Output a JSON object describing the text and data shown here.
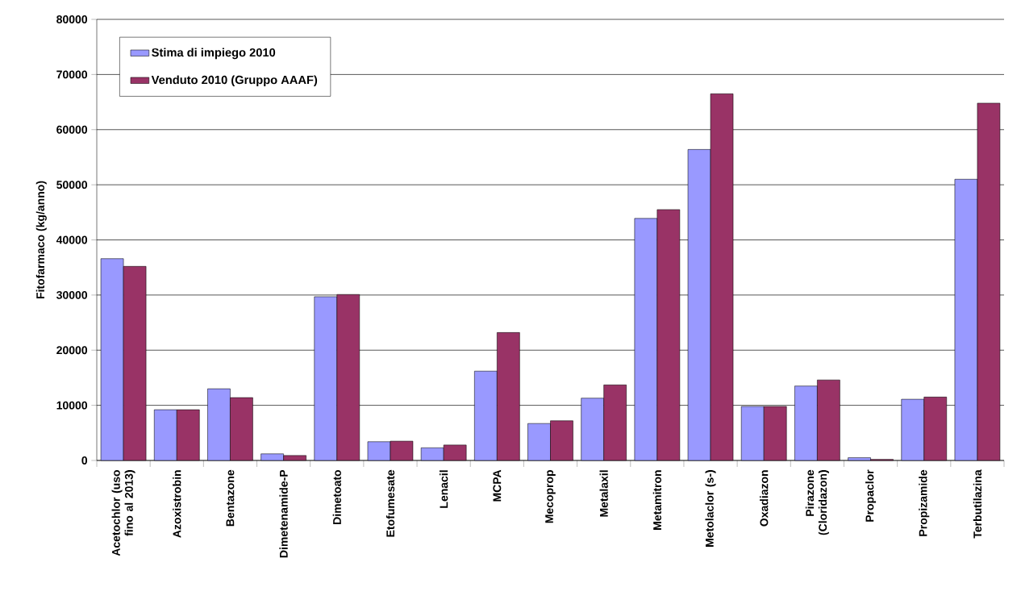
{
  "chart_data": {
    "type": "bar",
    "ylabel": "Fitofarmaco (kg/anno)",
    "categories": [
      "Acetochlor (uso fino al 2013)",
      "Azoxistrobin",
      "Bentazone",
      "Dimetenamide-P",
      "Dimetoato",
      "Etofumesate",
      "Lenacil",
      "MCPA",
      "Mecoprop",
      "Metalaxil",
      "Metamitron",
      "Metolaclor (s-)",
      "Oxadiazon",
      "Pirazone (Cloridazon)",
      "Propaclor",
      "Propizamide",
      "Terbutilazina"
    ],
    "series": [
      {
        "name": "Stima di impiego 2010",
        "color": "#9999ff",
        "values": [
          36600,
          9200,
          13000,
          1200,
          29700,
          3400,
          2300,
          16200,
          6700,
          11300,
          43900,
          56400,
          9800,
          13500,
          500,
          11100,
          51000
        ]
      },
      {
        "name": "Venduto 2010 (Gruppo AAAF)",
        "color": "#993366",
        "values": [
          35200,
          9200,
          11400,
          900,
          30100,
          3500,
          2800,
          23200,
          7200,
          13700,
          45500,
          66500,
          9800,
          14600,
          200,
          11500,
          64800
        ]
      }
    ],
    "ylim": [
      0,
      80000
    ],
    "yticks": [
      0,
      10000,
      20000,
      30000,
      40000,
      50000,
      60000,
      70000,
      80000
    ],
    "grid": "y",
    "legend": "top left"
  }
}
